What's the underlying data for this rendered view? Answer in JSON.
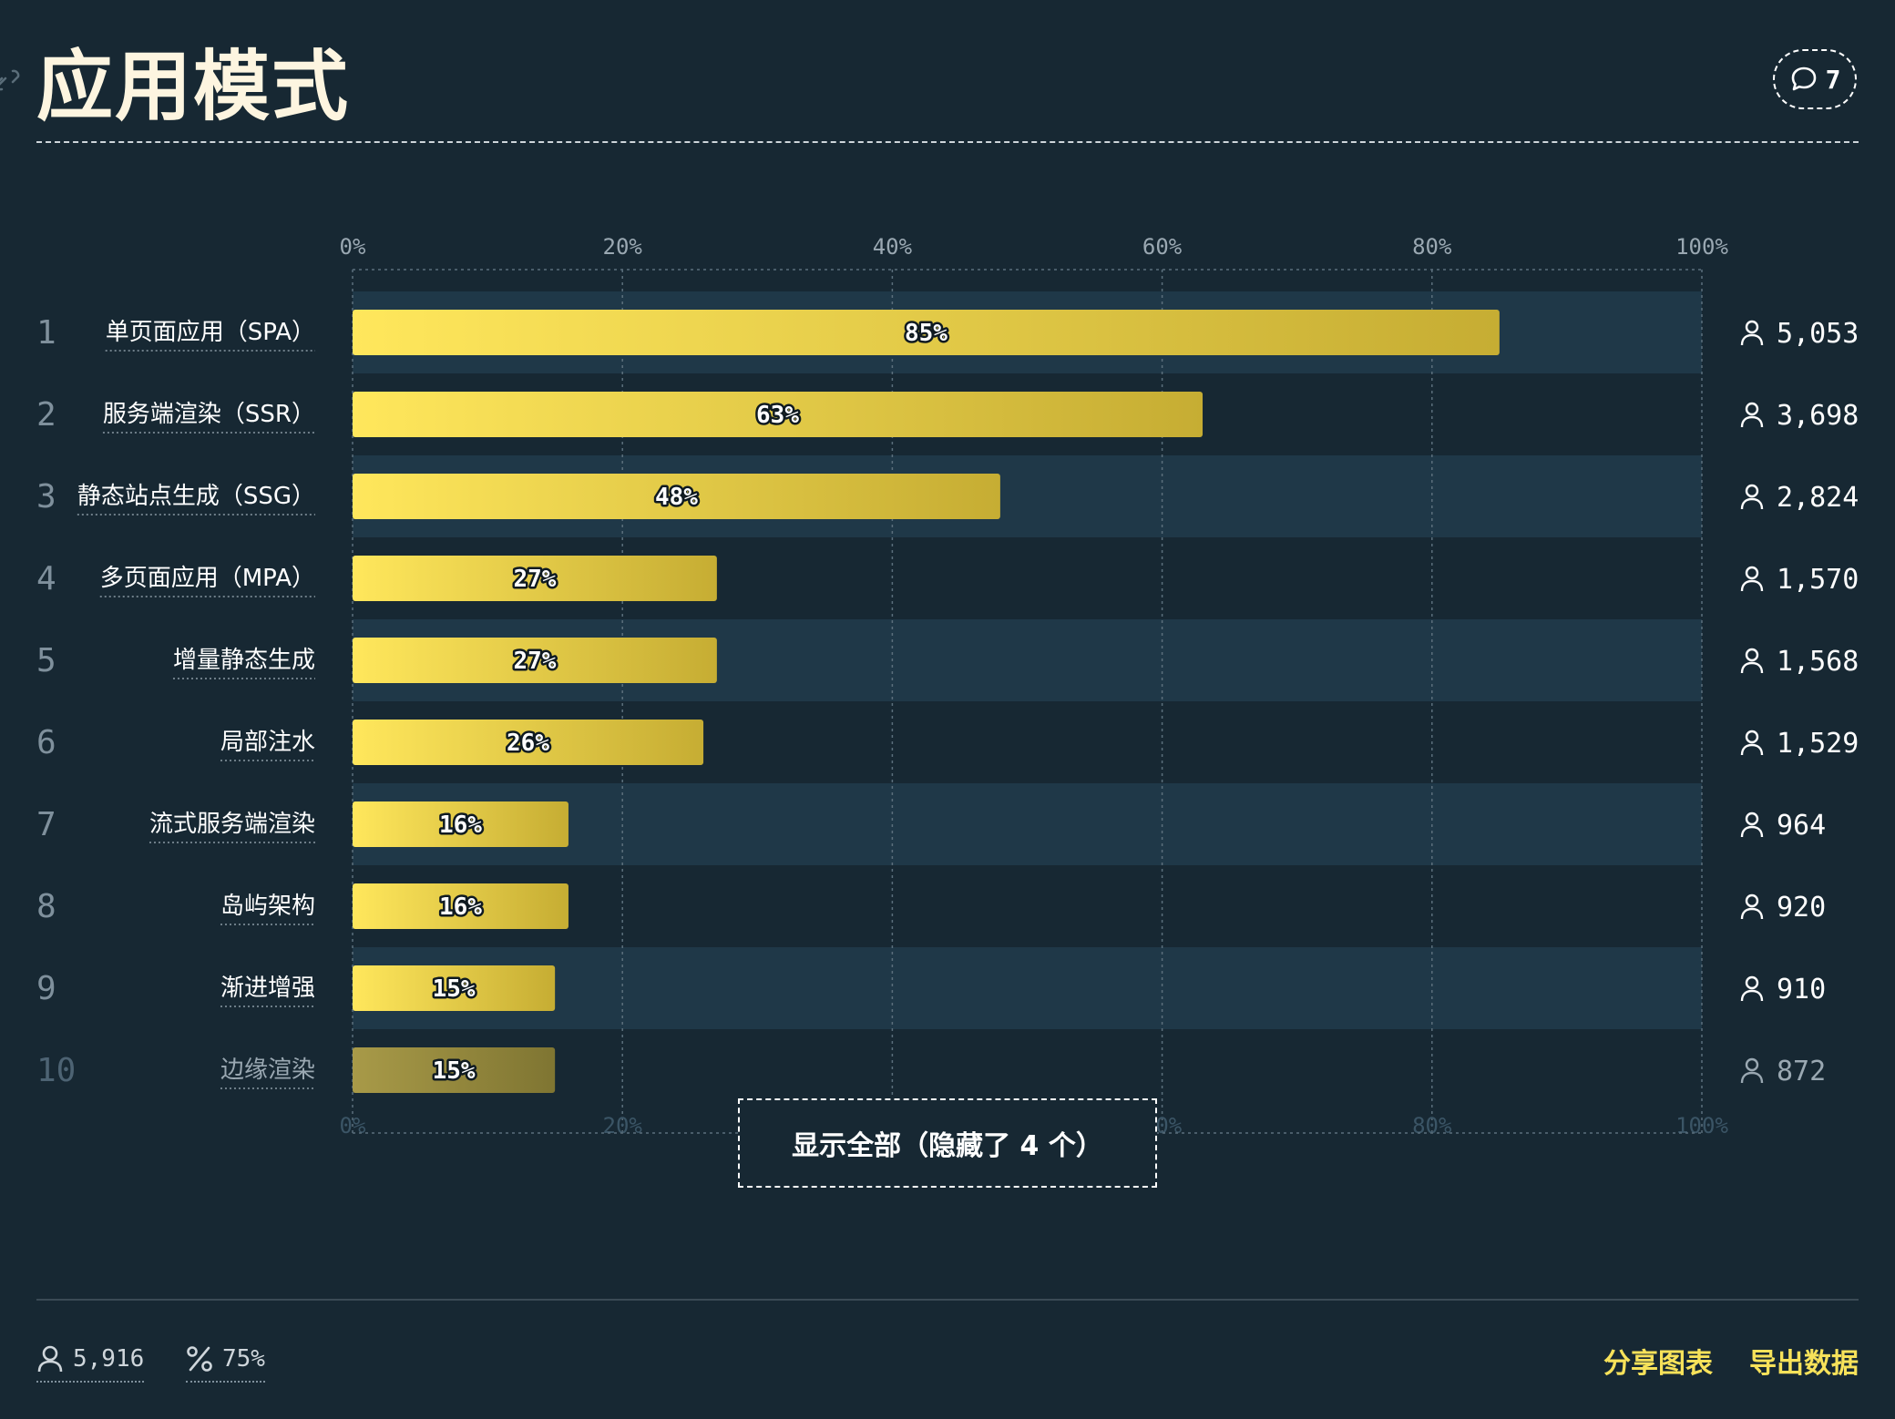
{
  "header": {
    "title": "应用模式",
    "comment_count": "7"
  },
  "chart_data": {
    "type": "bar",
    "orientation": "horizontal",
    "title": "应用模式",
    "ticks": [
      "0%",
      "20%",
      "40%",
      "60%",
      "80%",
      "100%"
    ],
    "xlim": [
      0,
      100
    ],
    "grid": true,
    "bar_color_start": "#ffe75c",
    "bar_color_end": "#c6ad33",
    "rows": [
      {
        "rank": "1",
        "label": "单页面应用（SPA）",
        "value": 85,
        "value_label": "85%",
        "count": "5,053"
      },
      {
        "rank": "2",
        "label": "服务端渲染（SSR）",
        "value": 63,
        "value_label": "63%",
        "count": "3,698"
      },
      {
        "rank": "3",
        "label": "静态站点生成（SSG）",
        "value": 48,
        "value_label": "48%",
        "count": "2,824"
      },
      {
        "rank": "4",
        "label": "多页面应用（MPA）",
        "value": 27,
        "value_label": "27%",
        "count": "1,570"
      },
      {
        "rank": "5",
        "label": "增量静态生成",
        "value": 27,
        "value_label": "27%",
        "count": "1,568"
      },
      {
        "rank": "6",
        "label": "局部注水",
        "value": 26,
        "value_label": "26%",
        "count": "1,529"
      },
      {
        "rank": "7",
        "label": "流式服务端渲染",
        "value": 16,
        "value_label": "16%",
        "count": "964"
      },
      {
        "rank": "8",
        "label": "岛屿架构",
        "value": 16,
        "value_label": "16%",
        "count": "920"
      },
      {
        "rank": "9",
        "label": "渐进增强",
        "value": 15,
        "value_label": "15%",
        "count": "910"
      },
      {
        "rank": "10",
        "label": "边缘渲染",
        "value": 15,
        "value_label": "15%",
        "count": "872",
        "faded": true
      }
    ]
  },
  "show_all_label": "显示全部（隐藏了 4 个）",
  "footer": {
    "respondents": "5,916",
    "percent": "75%",
    "share_label": "分享图表",
    "export_label": "导出数据"
  },
  "icons": {
    "link": "link-icon",
    "comment": "comment-icon",
    "user": "user-icon",
    "percent": "percent-icon"
  }
}
